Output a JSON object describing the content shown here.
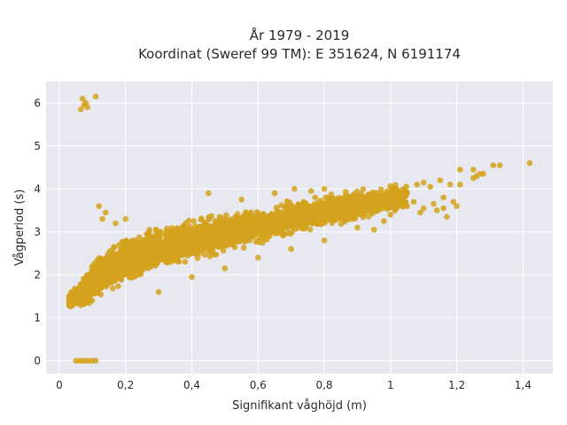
{
  "chart_data": {
    "type": "scatter",
    "title_line1": "År 1979 - 2019",
    "title_line2": "Koordinat (Sweref 99 TM): E 351624, N 6191174",
    "xlabel": "Signifikant våghöjd (m)",
    "ylabel": "Vågperiod (s)",
    "xlim": [
      -0.04,
      1.49
    ],
    "ylim": [
      -0.3,
      6.5
    ],
    "x_ticks": [
      0,
      0.2,
      0.4,
      0.6,
      0.8,
      1,
      1.2,
      1.4
    ],
    "x_tick_labels": [
      "0",
      "0,2",
      "0,4",
      "0,6",
      "0,8",
      "1",
      "1,2",
      "1,4"
    ],
    "y_ticks": [
      0,
      1,
      2,
      3,
      4,
      5,
      6
    ],
    "y_tick_labels": [
      "0",
      "1",
      "2",
      "3",
      "4",
      "5",
      "6"
    ],
    "grid": true,
    "marker_color": "#d4a21c",
    "plot_background": "#e8e8f0",
    "bulk_trend": {
      "x": [
        0.03,
        0.06,
        0.1,
        0.15,
        0.2,
        0.3,
        0.4,
        0.5,
        0.6,
        0.7,
        0.8,
        0.9,
        1.0,
        1.05
      ],
      "y_low": [
        1.2,
        1.2,
        1.25,
        1.5,
        1.7,
        2.0,
        2.25,
        2.45,
        2.65,
        2.85,
        3.05,
        3.2,
        3.35,
        3.45
      ],
      "y_high": [
        1.6,
        1.8,
        2.4,
        2.75,
        2.95,
        3.2,
        3.35,
        3.5,
        3.6,
        3.8,
        3.95,
        4.05,
        4.15,
        4.2
      ]
    },
    "points": [
      [
        0.07,
        6.1
      ],
      [
        0.075,
        5.95
      ],
      [
        0.08,
        6.0
      ],
      [
        0.085,
        5.9
      ],
      [
        0.11,
        6.15
      ],
      [
        0.065,
        5.85
      ],
      [
        0.05,
        0.0
      ],
      [
        0.06,
        0.0
      ],
      [
        0.07,
        0.0
      ],
      [
        0.08,
        0.0
      ],
      [
        0.09,
        0.0
      ],
      [
        0.1,
        0.0
      ],
      [
        0.11,
        0.0
      ],
      [
        0.12,
        3.6
      ],
      [
        0.13,
        3.3
      ],
      [
        0.14,
        3.45
      ],
      [
        0.17,
        3.2
      ],
      [
        0.2,
        3.3
      ],
      [
        0.3,
        1.6
      ],
      [
        0.4,
        1.95
      ],
      [
        0.5,
        2.15
      ],
      [
        0.6,
        2.4
      ],
      [
        0.7,
        2.6
      ],
      [
        0.8,
        2.8
      ],
      [
        0.45,
        3.9
      ],
      [
        0.55,
        3.75
      ],
      [
        0.65,
        3.9
      ],
      [
        0.71,
        4.0
      ],
      [
        0.76,
        3.95
      ],
      [
        0.8,
        4.0
      ],
      [
        0.9,
        3.1
      ],
      [
        0.95,
        3.05
      ],
      [
        1.0,
        3.4
      ],
      [
        0.98,
        3.25
      ],
      [
        1.05,
        3.9
      ],
      [
        1.08,
        4.1
      ],
      [
        1.1,
        4.15
      ],
      [
        1.12,
        4.05
      ],
      [
        1.15,
        4.2
      ],
      [
        1.18,
        4.1
      ],
      [
        1.05,
        3.6
      ],
      [
        1.07,
        3.7
      ],
      [
        1.1,
        3.55
      ],
      [
        1.13,
        3.65
      ],
      [
        1.16,
        3.8
      ],
      [
        1.19,
        3.7
      ],
      [
        1.09,
        3.45
      ],
      [
        1.14,
        3.5
      ],
      [
        1.17,
        3.35
      ],
      [
        1.2,
        3.6
      ],
      [
        1.16,
        3.55
      ],
      [
        1.21,
        4.45
      ],
      [
        1.21,
        4.1
      ],
      [
        1.25,
        4.45
      ],
      [
        1.26,
        4.3
      ],
      [
        1.27,
        4.35
      ],
      [
        1.25,
        4.25
      ],
      [
        1.28,
        4.35
      ],
      [
        1.31,
        4.55
      ],
      [
        1.33,
        4.55
      ],
      [
        1.42,
        4.6
      ]
    ]
  }
}
